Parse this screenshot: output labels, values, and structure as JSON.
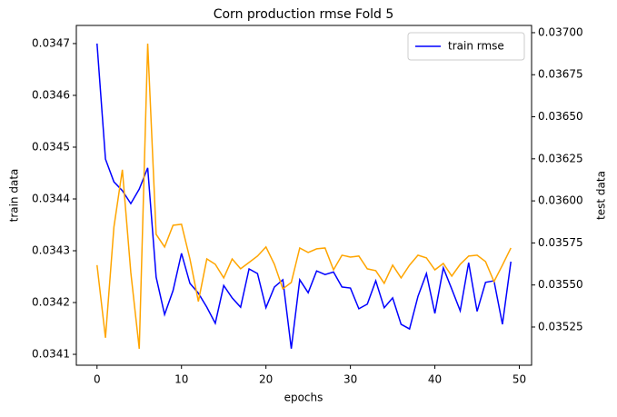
{
  "chart_data": {
    "type": "line",
    "title": "Corn production rmse Fold 5",
    "x_label": "epochs",
    "y_label": "train data",
    "y2_label": "test data",
    "y_label_color": "#0000ff",
    "y2_label_color": "#ffa500",
    "x": [
      0,
      1,
      2,
      3,
      4,
      5,
      6,
      7,
      8,
      9,
      10,
      11,
      12,
      13,
      14,
      15,
      16,
      17,
      18,
      19,
      20,
      21,
      22,
      23,
      24,
      25,
      26,
      27,
      28,
      29,
      30,
      31,
      32,
      33,
      34,
      35,
      36,
      37,
      38,
      39,
      40,
      41,
      42,
      43,
      44,
      45,
      46,
      47,
      48,
      49
    ],
    "series": [
      {
        "name": "train rmse",
        "color": "#0000ff",
        "axis": "y",
        "values": [
          0.0347,
          0.034477,
          0.034433,
          0.034416,
          0.034391,
          0.034419,
          0.03446,
          0.034249,
          0.034177,
          0.034223,
          0.034295,
          0.034237,
          0.034218,
          0.034191,
          0.03416,
          0.034233,
          0.034209,
          0.034191,
          0.034265,
          0.034256,
          0.03419,
          0.03423,
          0.034244,
          0.034111,
          0.034244,
          0.034219,
          0.034261,
          0.034254,
          0.034259,
          0.03423,
          0.034228,
          0.034188,
          0.034197,
          0.034242,
          0.03419,
          0.034209,
          0.034158,
          0.034149,
          0.034212,
          0.034256,
          0.034179,
          0.034267,
          0.034226,
          0.034184,
          0.034277,
          0.034183,
          0.034239,
          0.034242,
          0.034158,
          0.034279
        ]
      },
      {
        "color": "#ffa500",
        "axis": "y2",
        "values": [
          0.035618,
          0.035186,
          0.035844,
          0.036185,
          0.035574,
          0.035121,
          0.036935,
          0.035801,
          0.035726,
          0.035855,
          0.035861,
          0.035655,
          0.035402,
          0.035655,
          0.035623,
          0.035542,
          0.035655,
          0.035596,
          0.035634,
          0.035672,
          0.035726,
          0.035623,
          0.035477,
          0.035515,
          0.03572,
          0.035693,
          0.035715,
          0.03572,
          0.03559,
          0.035677,
          0.035666,
          0.035672,
          0.035596,
          0.035585,
          0.03551,
          0.035618,
          0.035542,
          0.035618,
          0.035677,
          0.035661,
          0.03559,
          0.035628,
          0.035553,
          0.035623,
          0.035672,
          0.035677,
          0.035639,
          0.03552,
          0.035618,
          0.03572
        ]
      }
    ],
    "xlim": [
      -2.45,
      51.45
    ],
    "xticks": [
      0,
      10,
      20,
      30,
      40,
      50
    ],
    "ylim": [
      0.034079,
      0.034735
    ],
    "yticks": [
      0.0341,
      0.0342,
      0.0343,
      0.0344,
      0.0345,
      0.0346,
      0.0347
    ],
    "y2lim": [
      0.035023,
      0.037043
    ],
    "y2ticks": [
      0.03525,
      {
        "value": 0.0355,
        "label": "0.03550"
      },
      0.03575,
      {
        "value": 0.036,
        "label": "0.03600"
      },
      0.03625,
      {
        "value": 0.0365,
        "label": "0.03650"
      },
      0.03675,
      {
        "value": 0.037,
        "label": "0.03700"
      }
    ],
    "legend": "upper right"
  }
}
